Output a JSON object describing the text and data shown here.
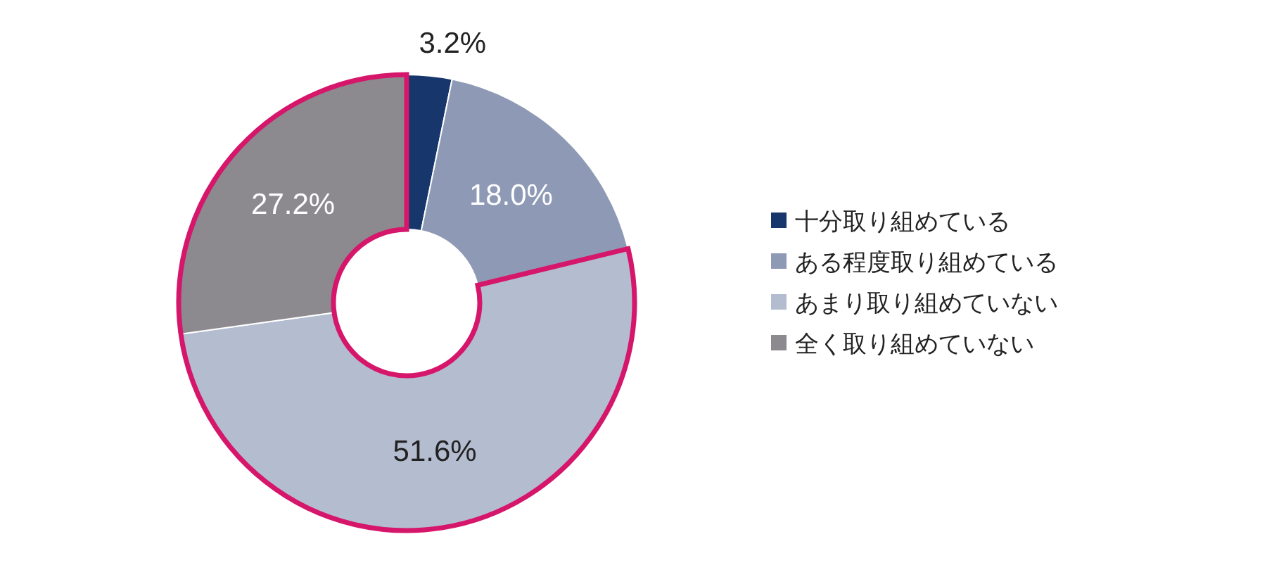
{
  "chart_data": {
    "type": "donut",
    "categories": [
      "十分取り組めている",
      "ある程度取り組めている",
      "あまり取り組めていない",
      "全く取り組めていない"
    ],
    "values": [
      3.2,
      18.0,
      51.6,
      27.2
    ],
    "colors": [
      "#17366b",
      "#8e9ab5",
      "#b4bcd0",
      "#8c8a8f"
    ],
    "value_labels": [
      "3.2%",
      "18.0%",
      "51.6%",
      "27.2%"
    ],
    "legend": "right"
  }
}
